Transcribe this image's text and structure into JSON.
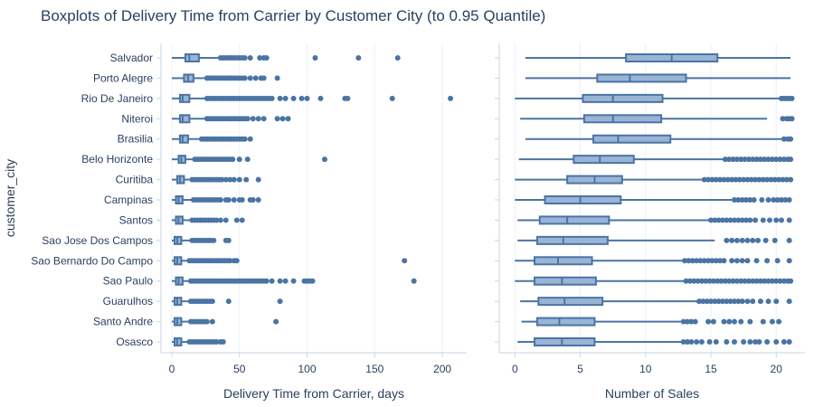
{
  "chart_data": {
    "title": "Boxplots of Delivery Time from Carrier by Customer City (to 0.95 Quantile)",
    "ylabel": "customer_city",
    "colors": {
      "line": "#4a74a3",
      "fill": "#9ab4d6",
      "grid": "#ebf0f8",
      "axis": "#c8d4e3"
    },
    "categories": [
      "Salvador",
      "Porto Alegre",
      "Rio De Janeiro",
      "Niteroi",
      "Brasilia",
      "Belo Horizonte",
      "Curitiba",
      "Campinas",
      "Santos",
      "Sao Jose Dos Campos",
      "Sao Bernardo Do Campo",
      "Sao Paulo",
      "Guarulhos",
      "Santo Andre",
      "Osasco"
    ],
    "panels": [
      {
        "type": "box",
        "orientation": "horizontal",
        "xlabel": "Delivery Time from Carrier, days",
        "xlim": [
          -8,
          218
        ],
        "xticks": [
          0,
          50,
          100,
          150,
          200
        ],
        "boxes": [
          {
            "category": "Salvador",
            "lower": 0,
            "q1": 10,
            "median": 13,
            "q3": 20,
            "upper": 35,
            "outliers": [
              36,
              38,
              40,
              42,
              44,
              46,
              48,
              50,
              52,
              54,
              58,
              65,
              68,
              70,
              106,
              138,
              167
            ]
          },
          {
            "category": "Porto Alegre",
            "lower": 0,
            "q1": 9,
            "median": 12,
            "q3": 16,
            "upper": 24,
            "outliers": [
              26,
              28,
              30,
              32,
              34,
              36,
              38,
              40,
              42,
              44,
              46,
              48,
              50,
              52,
              54,
              58,
              62,
              66,
              68,
              78
            ]
          },
          {
            "category": "Rio De Janeiro",
            "lower": 0,
            "q1": 6,
            "median": 8,
            "q3": 13,
            "upper": 25,
            "outliers": [
              26,
              28,
              30,
              32,
              34,
              36,
              38,
              40,
              42,
              44,
              46,
              48,
              50,
              52,
              54,
              56,
              58,
              60,
              62,
              64,
              66,
              68,
              70,
              72,
              74,
              80,
              84,
              90,
              96,
              100,
              110,
              128,
              130,
              163,
              206
            ]
          },
          {
            "category": "Niteroi",
            "lower": 0,
            "q1": 6,
            "median": 8,
            "q3": 13,
            "upper": 25,
            "outliers": [
              26,
              28,
              30,
              32,
              34,
              36,
              38,
              40,
              42,
              44,
              46,
              48,
              50,
              52,
              54,
              56,
              60,
              64,
              68,
              78,
              82,
              86
            ]
          },
          {
            "category": "Brasilia",
            "lower": 0,
            "q1": 6,
            "median": 8,
            "q3": 12,
            "upper": 20,
            "outliers": [
              22,
              24,
              26,
              28,
              30,
              32,
              34,
              36,
              38,
              40,
              42,
              44,
              46,
              48,
              50,
              52,
              54,
              58
            ]
          },
          {
            "category": "Belo Horizonte",
            "lower": 0,
            "q1": 5,
            "median": 7,
            "q3": 10,
            "upper": 16,
            "outliers": [
              17,
              19,
              21,
              23,
              25,
              27,
              29,
              31,
              33,
              35,
              37,
              39,
              41,
              43,
              45,
              50,
              56,
              113
            ]
          },
          {
            "category": "Curitiba",
            "lower": 0,
            "q1": 4,
            "median": 6,
            "q3": 9,
            "upper": 14,
            "outliers": [
              15,
              17,
              19,
              21,
              23,
              25,
              27,
              29,
              31,
              33,
              35,
              37,
              40,
              43,
              46,
              50,
              55,
              64
            ]
          },
          {
            "category": "Campinas",
            "lower": 0,
            "q1": 3,
            "median": 5,
            "q3": 8,
            "upper": 15,
            "outliers": [
              16,
              18,
              20,
              22,
              24,
              26,
              28,
              30,
              32,
              34,
              36,
              40,
              42,
              46,
              50,
              52,
              58,
              60,
              64
            ]
          },
          {
            "category": "Santos",
            "lower": 0,
            "q1": 3,
            "median": 5,
            "q3": 8,
            "upper": 14,
            "outliers": [
              15,
              17,
              19,
              21,
              23,
              25,
              27,
              29,
              31,
              33,
              36,
              40,
              48,
              52
            ]
          },
          {
            "category": "Sao Jose Dos Campos",
            "lower": 0,
            "q1": 2,
            "median": 4,
            "q3": 7,
            "upper": 14,
            "outliers": [
              15,
              17,
              19,
              21,
              23,
              25,
              27,
              29,
              31,
              40,
              42
            ]
          },
          {
            "category": "Sao Bernardo Do Campo",
            "lower": 0,
            "q1": 2,
            "median": 4,
            "q3": 7,
            "upper": 12,
            "outliers": [
              13,
              15,
              17,
              19,
              21,
              23,
              25,
              27,
              29,
              31,
              33,
              35,
              37,
              39,
              41,
              43,
              46,
              48,
              172
            ]
          },
          {
            "category": "Sao Paulo",
            "lower": 0,
            "q1": 3,
            "median": 5,
            "q3": 8,
            "upper": 13,
            "outliers": [
              14,
              16,
              18,
              20,
              22,
              24,
              26,
              28,
              30,
              32,
              34,
              36,
              38,
              40,
              42,
              44,
              46,
              48,
              50,
              52,
              54,
              56,
              58,
              60,
              62,
              64,
              66,
              68,
              70,
              74,
              80,
              84,
              90,
              98,
              100,
              102,
              104,
              179
            ]
          },
          {
            "category": "Guarulhos",
            "lower": 0,
            "q1": 2,
            "median": 4,
            "q3": 7,
            "upper": 13,
            "outliers": [
              14,
              16,
              18,
              20,
              22,
              24,
              26,
              28,
              30,
              42,
              80
            ]
          },
          {
            "category": "Santo Andre",
            "lower": 0,
            "q1": 2,
            "median": 4,
            "q3": 7,
            "upper": 13,
            "outliers": [
              14,
              16,
              18,
              20,
              22,
              24,
              26,
              30,
              77
            ]
          },
          {
            "category": "Osasco",
            "lower": 0,
            "q1": 2,
            "median": 4,
            "q3": 7,
            "upper": 12,
            "outliers": [
              13,
              15,
              17,
              19,
              21,
              23,
              25,
              27,
              29,
              31,
              33,
              36,
              38
            ]
          }
        ]
      },
      {
        "type": "box",
        "orientation": "horizontal",
        "xlabel": "Number of Sales",
        "xlim": [
          -1.2,
          22.2
        ],
        "xticks": [
          0,
          5,
          10,
          15,
          20
        ],
        "boxes": [
          {
            "category": "Salvador",
            "lower": 0.8,
            "q1": 8.5,
            "median": 12,
            "q3": 15.5,
            "upper": 21.1,
            "outliers": []
          },
          {
            "category": "Porto Alegre",
            "lower": 0.8,
            "q1": 6.3,
            "median": 8.8,
            "q3": 13.1,
            "upper": 21.1,
            "outliers": []
          },
          {
            "category": "Rio De Janeiro",
            "lower": 0,
            "q1": 5.2,
            "median": 7.5,
            "q3": 11.3,
            "upper": 20.3,
            "outliers": [
              20.4,
              20.6,
              20.8,
              21.0,
              21.2
            ]
          },
          {
            "category": "Niteroi",
            "lower": 0.4,
            "q1": 5.3,
            "median": 7.5,
            "q3": 11.2,
            "upper": 19.3,
            "outliers": [
              20.5,
              20.8,
              21.0,
              21.2
            ]
          },
          {
            "category": "Brasilia",
            "lower": 0.8,
            "q1": 6.0,
            "median": 7.9,
            "q3": 11.9,
            "upper": 20.4,
            "outliers": [
              20.6,
              20.9,
              21.1
            ]
          },
          {
            "category": "Belo Horizonte",
            "lower": 0.3,
            "q1": 4.5,
            "median": 6.5,
            "q3": 9.1,
            "upper": 16.0,
            "outliers": [
              16.1,
              16.4,
              16.7,
              17.0,
              17.3,
              17.6,
              17.9,
              18.2,
              18.5,
              18.8,
              19.1,
              19.4,
              19.7,
              20.0,
              20.3,
              20.6,
              20.9,
              21.1
            ]
          },
          {
            "category": "Curitiba",
            "lower": 0,
            "q1": 4.0,
            "median": 6.1,
            "q3": 8.2,
            "upper": 14.4,
            "outliers": [
              14.5,
              14.8,
              15.1,
              15.4,
              15.7,
              16.0,
              16.3,
              16.6,
              16.9,
              17.2,
              17.5,
              17.8,
              18.1,
              18.4,
              18.7,
              19.0,
              19.3,
              19.6,
              19.9,
              20.2,
              20.5,
              20.8,
              21.1
            ]
          },
          {
            "category": "Campinas",
            "lower": 0,
            "q1": 2.3,
            "median": 5.0,
            "q3": 8.1,
            "upper": 16.6,
            "outliers": [
              16.8,
              17.1,
              17.4,
              17.7,
              18.0,
              18.3,
              18.9,
              19.4,
              19.8,
              20.1,
              20.4,
              20.7,
              21.0
            ]
          },
          {
            "category": "Santos",
            "lower": 0.2,
            "q1": 1.9,
            "median": 4.0,
            "q3": 7.2,
            "upper": 14.9,
            "outliers": [
              15.0,
              15.3,
              15.6,
              15.9,
              16.2,
              16.5,
              16.8,
              17.1,
              17.4,
              17.7,
              18.0,
              18.4,
              19.0,
              19.5,
              20.0,
              20.4,
              21.0
            ]
          },
          {
            "category": "Sao Jose Dos Campos",
            "lower": 0.2,
            "q1": 1.7,
            "median": 3.7,
            "q3": 7.1,
            "upper": 15.3,
            "outliers": [
              16.2,
              16.6,
              17.0,
              17.4,
              17.8,
              18.2,
              18.6,
              19.2,
              19.9,
              21.0
            ]
          },
          {
            "category": "Sao Bernardo Do Campo",
            "lower": 0,
            "q1": 1.5,
            "median": 3.3,
            "q3": 5.9,
            "upper": 12.9,
            "outliers": [
              13.0,
              13.3,
              13.6,
              13.9,
              14.2,
              14.5,
              14.8,
              15.1,
              15.4,
              15.7,
              16.0,
              16.6,
              17.0,
              17.4,
              17.8,
              18.5,
              19.3,
              20.1,
              21.0
            ]
          },
          {
            "category": "Sao Paulo",
            "lower": 0,
            "q1": 1.5,
            "median": 3.6,
            "q3": 6.2,
            "upper": 13.0,
            "outliers": [
              13.1,
              13.4,
              13.7,
              14.0,
              14.3,
              14.6,
              14.9,
              15.2,
              15.5,
              15.8,
              16.1,
              16.4,
              16.7,
              17.0,
              17.3,
              17.6,
              17.9,
              18.2,
              18.5,
              18.8,
              19.1,
              19.4,
              19.7,
              20.0,
              20.3,
              20.6,
              20.9,
              21.1
            ]
          },
          {
            "category": "Guarulhos",
            "lower": 0.4,
            "q1": 1.8,
            "median": 3.8,
            "q3": 6.7,
            "upper": 14.0,
            "outliers": [
              14.1,
              14.4,
              14.7,
              15.0,
              15.3,
              15.6,
              15.9,
              16.2,
              16.5,
              16.8,
              17.1,
              17.4,
              17.8,
              18.2,
              18.8,
              19.4,
              20.0,
              21.0
            ]
          },
          {
            "category": "Santo Andre",
            "lower": 0.5,
            "q1": 1.7,
            "median": 3.4,
            "q3": 6.1,
            "upper": 12.7,
            "outliers": [
              12.9,
              13.2,
              13.5,
              13.8,
              14.8,
              15.2,
              16.0,
              16.4,
              16.8,
              17.3,
              18.0,
              19.0,
              19.7,
              20.2
            ]
          },
          {
            "category": "Osasco",
            "lower": 0.2,
            "q1": 1.5,
            "median": 3.6,
            "q3": 6.1,
            "upper": 12.8,
            "outliers": [
              12.9,
              13.2,
              13.5,
              13.9,
              14.3,
              14.9,
              15.4,
              16.2,
              16.8,
              17.5,
              18.0,
              18.4,
              18.7,
              19.3,
              20.0,
              20.6,
              21.0
            ]
          }
        ]
      }
    ]
  }
}
